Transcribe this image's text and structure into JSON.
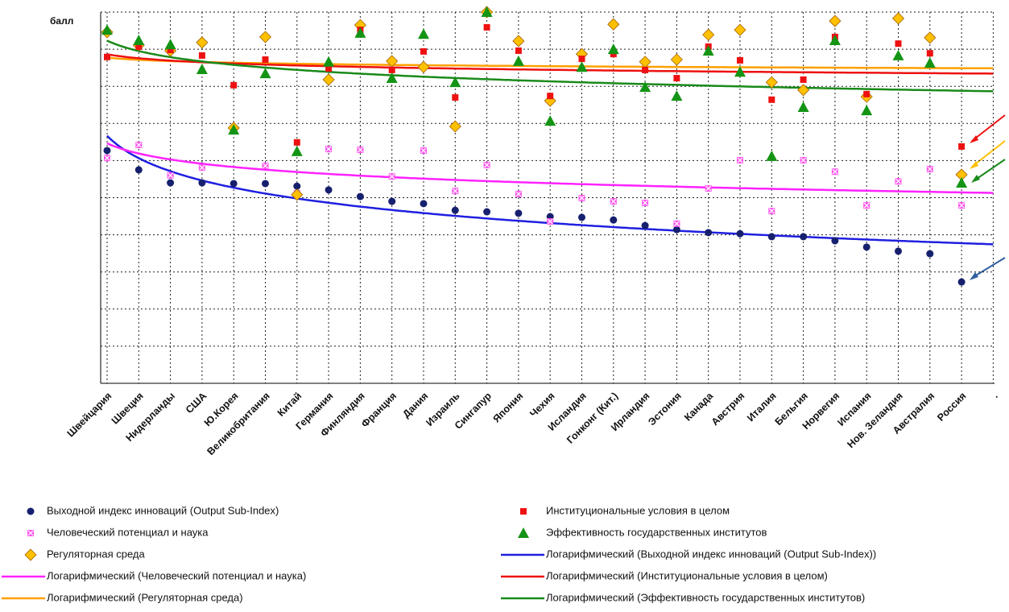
{
  "chart_data": {
    "type": "scatter",
    "y_label": "балл",
    "categories": [
      "Швейцария",
      "Швеция",
      "Нидерланды",
      "США",
      "Ю.Корея",
      "Великобритания",
      "Китай",
      "Германия",
      "Финляндия",
      "Франция",
      "Дания",
      "Израиль",
      "Сингапур",
      "Япония",
      "Чехия",
      "Исландия",
      "Гонконг (Кит.)",
      "Ирландия",
      "Эстония",
      "Канада",
      "Австрия",
      "Италия",
      "Бельгия",
      "Норвегия",
      "Испания",
      "Нов. Зеландия",
      "Австралия",
      "Россия",
      "."
    ],
    "ylim": [
      0,
      100
    ],
    "yticks": [
      0,
      10,
      20,
      30,
      40,
      50,
      60,
      70,
      80,
      90,
      100
    ],
    "grid": true,
    "series": [
      {
        "name": "Выходной индекс инноваций (Output Sub-Index)",
        "marker": "circle",
        "color": "#16206e",
        "values": [
          62.7,
          57.5,
          54.0,
          54.0,
          53.8,
          53.8,
          53.1,
          52.1,
          50.3,
          49.0,
          48.4,
          46.6,
          46.2,
          45.8,
          44.9,
          44.7,
          44.0,
          42.5,
          41.4,
          40.6,
          40.3,
          39.5,
          39.5,
          38.4,
          36.7,
          35.6,
          34.9,
          27.3,
          null
        ],
        "trendline": {
          "name": "Логарифмический (Выходной индекс инноваций (Output Sub-Index))",
          "color": "#1f1fe0"
        }
      },
      {
        "name": "Человеческий потенциал и наука",
        "marker": "cross",
        "color": "#ff55ee",
        "values": [
          60.7,
          64.2,
          56.0,
          58.1,
          67.9,
          58.6,
          51.2,
          63.1,
          62.9,
          55.7,
          62.7,
          51.8,
          58.8,
          51.0,
          43.6,
          49.9,
          49.0,
          48.6,
          43.0,
          52.5,
          60.1,
          46.4,
          60.1,
          57.0,
          47.9,
          54.4,
          57.7,
          47.9,
          null
        ],
        "trendline": {
          "name": "Логарифмический (Человеческий потенциал и наука)",
          "color": "#ff22ff"
        }
      },
      {
        "name": "Регуляторная среда",
        "marker": "diamond",
        "color": "#ffc000",
        "values": [
          94.6,
          91.1,
          89.6,
          91.8,
          68.8,
          93.3,
          50.8,
          81.8,
          96.5,
          86.8,
          85.2,
          69.2,
          100,
          92.2,
          76.1,
          88.7,
          96.7,
          86.6,
          87.2,
          93.9,
          95.2,
          81.1,
          79.0,
          97.6,
          77.2,
          98.3,
          93.1,
          56.2,
          null
        ],
        "trendline": {
          "name": "Логарифмический (Регуляторная среда)",
          "color": "#ffa000"
        }
      },
      {
        "name": "Институциональные условия в целом",
        "marker": "square",
        "color": "#ee1111",
        "values": [
          87.9,
          90.7,
          89.8,
          88.3,
          80.3,
          87.2,
          64.9,
          84.8,
          95.2,
          84.4,
          89.4,
          77.0,
          95.9,
          89.6,
          77.4,
          87.4,
          88.7,
          84.4,
          82.2,
          90.7,
          87.0,
          76.4,
          81.8,
          93.3,
          77.9,
          91.5,
          88.9,
          63.8,
          null
        ],
        "trendline": {
          "name": "Логарифмический (Институциональные условия в целом)",
          "color": "#ee1111"
        }
      },
      {
        "name": "Эффективность государственных институтов",
        "marker": "triangle",
        "color": "#149414",
        "values": [
          95.2,
          92.4,
          91.3,
          84.6,
          68.3,
          83.5,
          62.5,
          86.6,
          94.4,
          82.2,
          94.1,
          81.1,
          100,
          86.8,
          70.7,
          85.2,
          90.0,
          79.8,
          77.4,
          89.6,
          83.9,
          61.2,
          74.4,
          92.4,
          73.5,
          88.3,
          86.3,
          54.0,
          null
        ],
        "trendline": {
          "name": "Логарифмический (Эффективность государственных институтов)",
          "color": "#1a8a1a"
        }
      }
    ]
  }
}
